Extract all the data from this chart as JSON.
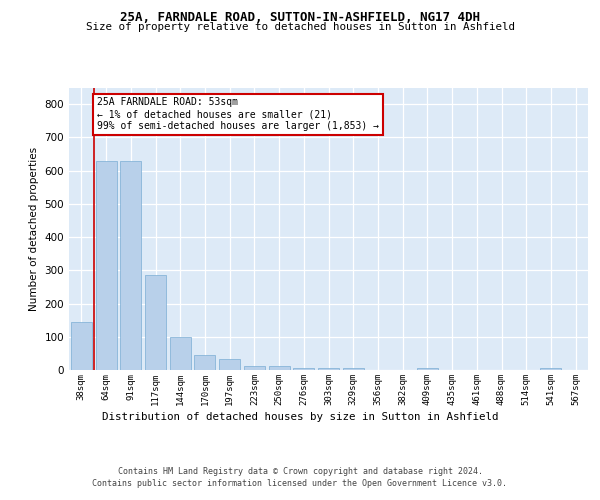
{
  "title1": "25A, FARNDALE ROAD, SUTTON-IN-ASHFIELD, NG17 4DH",
  "title2": "Size of property relative to detached houses in Sutton in Ashfield",
  "xlabel": "Distribution of detached houses by size in Sutton in Ashfield",
  "ylabel": "Number of detached properties",
  "categories": [
    "38sqm",
    "64sqm",
    "91sqm",
    "117sqm",
    "144sqm",
    "170sqm",
    "197sqm",
    "223sqm",
    "250sqm",
    "276sqm",
    "303sqm",
    "329sqm",
    "356sqm",
    "382sqm",
    "409sqm",
    "435sqm",
    "461sqm",
    "488sqm",
    "514sqm",
    "541sqm",
    "567sqm"
  ],
  "values": [
    145,
    630,
    628,
    285,
    100,
    45,
    32,
    12,
    11,
    6,
    5,
    5,
    0,
    0,
    5,
    0,
    0,
    0,
    0,
    5,
    0
  ],
  "bar_color": "#b8d0ea",
  "bar_edge_color": "#7aadd4",
  "vline_color": "#cc0000",
  "vline_x": 0.5,
  "annotation_text": "25A FARNDALE ROAD: 53sqm\n← 1% of detached houses are smaller (21)\n99% of semi-detached houses are larger (1,853) →",
  "annotation_box_edgecolor": "#cc0000",
  "ylim": [
    0,
    850
  ],
  "yticks": [
    0,
    100,
    200,
    300,
    400,
    500,
    600,
    700,
    800
  ],
  "grid_color": "#ffffff",
  "bg_color": "#ddeaf7",
  "footer1": "Contains HM Land Registry data © Crown copyright and database right 2024.",
  "footer2": "Contains public sector information licensed under the Open Government Licence v3.0."
}
